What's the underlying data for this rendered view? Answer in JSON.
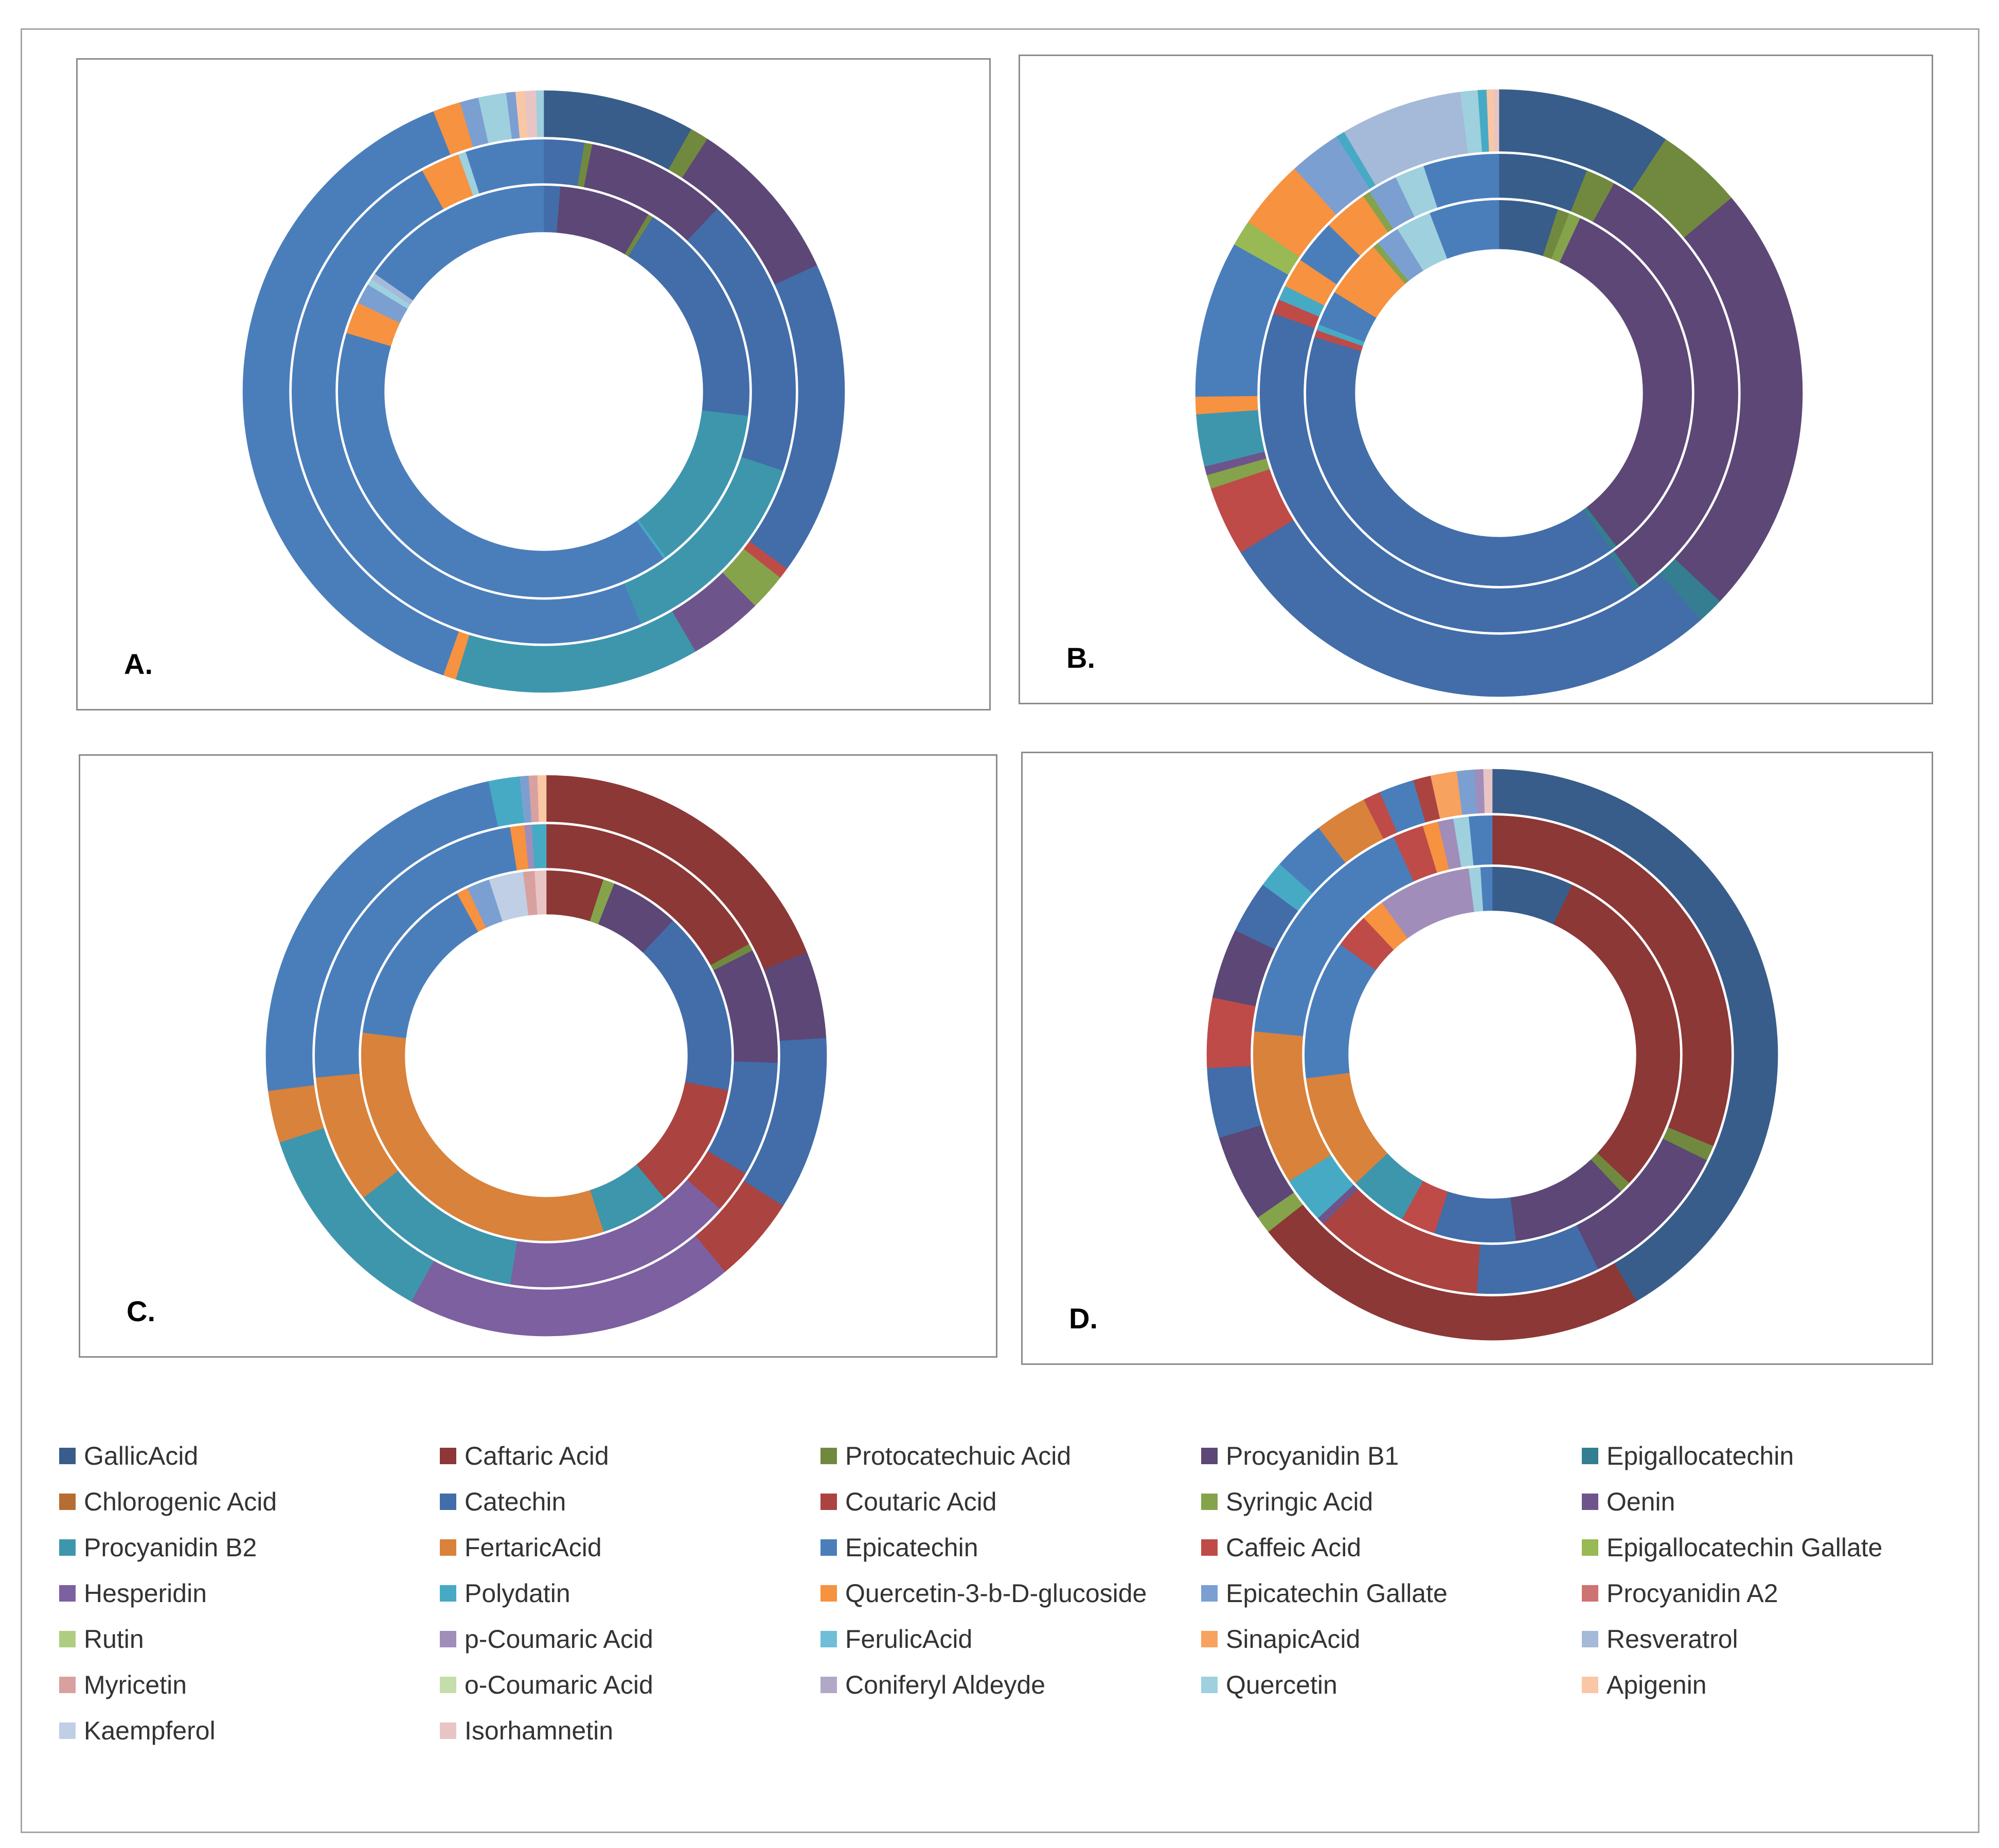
{
  "chart_data": {
    "type": "nested-donut",
    "legend": [
      {
        "name": "GallicAcid",
        "color": "#385d8a"
      },
      {
        "name": "Caftaric Acid",
        "color": "#8c3836"
      },
      {
        "name": "Protocatechuic Acid",
        "color": "#71893f"
      },
      {
        "name": "Procyanidin B1",
        "color": "#5c4776"
      },
      {
        "name": "Epigallocatechin",
        "color": "#357d91"
      },
      {
        "name": "Chlorogenic Acid",
        "color": "#b66d31"
      },
      {
        "name": "Catechin",
        "color": "#426da9"
      },
      {
        "name": "Coutaric Acid",
        "color": "#ab4340"
      },
      {
        "name": "Syringic Acid",
        "color": "#85a34b"
      },
      {
        "name": "Oenin",
        "color": "#6d558c"
      },
      {
        "name": "Procyanidin B2",
        "color": "#3e96ad"
      },
      {
        "name": "FertaricAcid",
        "color": "#d9823b"
      },
      {
        "name": "Epicatechin",
        "color": "#4a7ebb"
      },
      {
        "name": "Caffeic Acid",
        "color": "#be4b48"
      },
      {
        "name": "Epigallocatechin Gallate",
        "color": "#98b954"
      },
      {
        "name": "Hesperidin",
        "color": "#7d60a0"
      },
      {
        "name": "Polydatin",
        "color": "#46aac5"
      },
      {
        "name": "Quercetin-3-b-D-glucoside",
        "color": "#f69240"
      },
      {
        "name": "Epicatechin Gallate",
        "color": "#7c9fd2"
      },
      {
        "name": "Procyanidin A2",
        "color": "#cd7371"
      },
      {
        "name": "Rutin",
        "color": "#afcd81"
      },
      {
        "name": "p-Coumaric Acid",
        "color": "#a08dba"
      },
      {
        "name": "FerulicAcid",
        "color": "#6ebed7"
      },
      {
        "name": "SinapicAcid",
        "color": "#f7a25e"
      },
      {
        "name": "Resveratrol",
        "color": "#a5b9d9"
      },
      {
        "name": "Myricetin",
        "color": "#d9a0a0"
      },
      {
        "name": "o-Coumaric Acid",
        "color": "#c5ddaa"
      },
      {
        "name": "Coniferyl Aldeyde",
        "color": "#b1a8c8"
      },
      {
        "name": "Quercetin",
        "color": "#9ed0de"
      },
      {
        "name": "Apigenin",
        "color": "#f9c7a5"
      },
      {
        "name": "Kaempferol",
        "color": "#c0cfe5"
      },
      {
        "name": "Isorhamnetin",
        "color": "#e8c5c4"
      }
    ],
    "panels": [
      {
        "label": "A.",
        "rings": [
          [
            [
              "Catechin",
              1.3
            ],
            [
              "Procyanidin B1",
              7.2
            ],
            [
              "Protocatechuic Acid",
              0.4
            ],
            [
              "Catechin",
              18
            ],
            [
              "Procyanidin B2",
              13
            ],
            [
              "Polydatin",
              0.2
            ],
            [
              "Epicatechin",
              39.5
            ],
            [
              "Quercetin-3-b-D-glucoside",
              2.5
            ],
            [
              "Epicatechin Gallate",
              1.6
            ],
            [
              "Quercetin",
              0.5
            ],
            [
              "Resveratrol",
              0.5
            ],
            [
              "Epicatechin",
              15.3
            ]
          ],
          [
            [
              "Catechin",
              2.6
            ],
            [
              "Protocatechuic Acid",
              0.5
            ],
            [
              "Procyanidin B1",
              9
            ],
            [
              "Catechin",
              18
            ],
            [
              "Procyanidin B2",
              13.6
            ],
            [
              "Epicatechin",
              48.3
            ],
            [
              "Quercetin-3-b-D-glucoside",
              2.5
            ],
            [
              "Quercetin",
              0.5
            ],
            [
              "Epicatechin",
              5
            ]
          ],
          [
            [
              "GallicAcid",
              8.2
            ],
            [
              "Protocatechuic Acid",
              1
            ],
            [
              "Procyanidin B1",
              9
            ],
            [
              "Catechin",
              17
            ],
            [
              "Caffeic Acid",
              0.6
            ],
            [
              "Syringic Acid",
              2
            ],
            [
              "Oenin",
              4
            ],
            [
              "Procyanidin B2",
              13.2
            ],
            [
              "Quercetin-3-b-D-glucoside",
              0.7
            ],
            [
              "Epicatechin",
              38.8
            ],
            [
              "Quercetin-3-b-D-glucoside",
              1.5
            ],
            [
              "Epicatechin Gallate",
              1
            ],
            [
              "Quercetin",
              1.5
            ],
            [
              "Epicatechin Gallate",
              0.5
            ],
            [
              "Apigenin",
              0.5
            ],
            [
              "Isorhamnetin",
              0.6
            ],
            [
              "Quercetin",
              0.4
            ]
          ]
        ]
      },
      {
        "label": "B.",
        "rings": [
          [
            [
              "GallicAcid",
              5
            ],
            [
              "Protocatechuic Acid",
              1
            ],
            [
              "Syringic Acid",
              1
            ],
            [
              "Procyanidin B1",
              33
            ],
            [
              "Epigallocatechin",
              0.5
            ],
            [
              "Catechin",
              40
            ],
            [
              "Caffeic Acid",
              0.6
            ],
            [
              "Polydatin",
              0.5
            ],
            [
              "Epicatechin",
              3
            ],
            [
              "Quercetin-3-b-D-glucoside",
              5
            ],
            [
              "Syringic Acid",
              0.5
            ],
            [
              "Epicatechin Gallate",
              2
            ],
            [
              "Quercetin",
              3
            ],
            [
              "Epicatechin",
              5.9
            ]
          ],
          [
            [
              "GallicAcid",
              6
            ],
            [
              "Protocatechuic Acid",
              2
            ],
            [
              "Procyanidin B1",
              32
            ],
            [
              "Epigallocatechin",
              0.4
            ],
            [
              "Catechin",
              40
            ],
            [
              "Caffeic Acid",
              1
            ],
            [
              "Polydatin",
              1
            ],
            [
              "Quercetin-3-b-D-glucoside",
              2
            ],
            [
              "Epicatechin",
              3
            ],
            [
              "Quercetin-3-b-D-glucoside",
              3
            ],
            [
              "Syringic Acid",
              0.5
            ],
            [
              "Epicatechin Gallate",
              2
            ],
            [
              "Quercetin",
              2
            ],
            [
              "Epicatechin",
              5.1
            ]
          ],
          [
            [
              "GallicAcid",
              10
            ],
            [
              "Protocatechuic Acid",
              5
            ],
            [
              "Procyanidin B1",
              25
            ],
            [
              "Epigallocatechin",
              1.5
            ],
            [
              "Catechin",
              30
            ],
            [
              "Caffeic Acid",
              4
            ],
            [
              "Syringic Acid",
              0.8
            ],
            [
              "Oenin",
              0.5
            ],
            [
              "Procyanidin B2",
              3
            ],
            [
              "Quercetin-3-b-D-glucoside",
              1
            ],
            [
              "Epicatechin",
              9
            ],
            [
              "Epigallocatechin Gallate",
              1.5
            ],
            [
              "Quercetin-3-b-D-glucoside",
              4
            ],
            [
              "Epicatechin Gallate",
              3
            ],
            [
              "Polydatin",
              0.5
            ],
            [
              "Resveratrol",
              7
            ],
            [
              "Quercetin",
              1
            ],
            [
              "Polydatin",
              0.5
            ],
            [
              "Apigenin",
              0.4
            ],
            [
              "Isorhamnetin",
              0.3
            ]
          ]
        ]
      },
      {
        "label": "C.",
        "rings": [
          [
            [
              "Caftaric Acid",
              5
            ],
            [
              "Syringic Acid",
              1
            ],
            [
              "Procyanidin B1",
              6
            ],
            [
              "Catechin",
              16
            ],
            [
              "Coutaric Acid",
              11
            ],
            [
              "Procyanidin B2",
              6
            ],
            [
              "FertaricAcid",
              32
            ],
            [
              "Epicatechin",
              15
            ],
            [
              "Quercetin-3-b-D-glucoside",
              1
            ],
            [
              "Epicatechin Gallate",
              2
            ],
            [
              "Kaempferol",
              3
            ],
            [
              "Myricetin",
              1
            ],
            [
              "Isorhamnetin",
              1
            ]
          ],
          [
            [
              "Caftaric Acid",
              17
            ],
            [
              "Protocatechuic Acid",
              0.5
            ],
            [
              "Procyanidin B1",
              8
            ],
            [
              "Catechin",
              8
            ],
            [
              "Coutaric Acid",
              3
            ],
            [
              "Hesperidin",
              16
            ],
            [
              "Procyanidin B2",
              12
            ],
            [
              "FertaricAcid",
              9
            ],
            [
              "Epicatechin",
              24
            ],
            [
              "Quercetin-3-b-D-glucoside",
              1
            ],
            [
              "p-Coumaric Acid",
              0.5
            ],
            [
              "Polydatin",
              1
            ]
          ],
          [
            [
              "Caftaric Acid",
              19
            ],
            [
              "Procyanidin B1",
              5
            ],
            [
              "Catechin",
              10
            ],
            [
              "Coutaric Acid",
              5
            ],
            [
              "Hesperidin",
              19
            ],
            [
              "Procyanidin B2",
              12
            ],
            [
              "FertaricAcid",
              3
            ],
            [
              "Epicatechin",
              23.7
            ],
            [
              "Polydatin",
              1.8
            ],
            [
              "Epicatechin Gallate",
              0.5
            ],
            [
              "Myricetin",
              0.5
            ],
            [
              "Apigenin",
              0.5
            ]
          ]
        ]
      },
      {
        "label": "D.",
        "rings": [
          [
            [
              "GallicAcid",
              7
            ],
            [
              "Caftaric Acid",
              30
            ],
            [
              "Protocatechuic Acid",
              1
            ],
            [
              "Procyanidin B1",
              10
            ],
            [
              "Catechin",
              7
            ],
            [
              "Caffeic Acid",
              3
            ],
            [
              "Procyanidin B2",
              5
            ],
            [
              "FertaricAcid",
              10
            ],
            [
              "Epicatechin",
              12
            ],
            [
              "Caffeic Acid",
              3
            ],
            [
              "Quercetin-3-b-D-glucoside",
              2
            ],
            [
              "p-Coumaric Acid",
              8
            ],
            [
              "Quercetin",
              1
            ],
            [
              "Epicatechin",
              1
            ]
          ],
          [
            [
              "Caftaric Acid",
              30
            ],
            [
              "Protocatechuic Acid",
              1
            ],
            [
              "Procyanidin B1",
              10
            ],
            [
              "Catechin",
              8
            ],
            [
              "Coutaric Acid",
              11
            ],
            [
              "Oenin",
              0.5
            ],
            [
              "Polydatin",
              3
            ],
            [
              "FertaricAcid",
              10
            ],
            [
              "Epicatechin",
              16
            ],
            [
              "Caffeic Acid",
              2
            ],
            [
              "Quercetin-3-b-D-glucoside",
              1
            ],
            [
              "p-Coumaric Acid",
              1
            ],
            [
              "Quercetin",
              1
            ],
            [
              "Epicatechin",
              1.5
            ]
          ],
          [
            [
              "GallicAcid",
              42
            ],
            [
              "Caftaric Acid",
              23
            ],
            [
              "Syringic Acid",
              1
            ],
            [
              "Procyanidin B1",
              5
            ],
            [
              "Catechin",
              4
            ],
            [
              "Caffeic Acid",
              4
            ],
            [
              "Procyanidin B1",
              4
            ],
            [
              "Catechin",
              3
            ],
            [
              "Polydatin",
              1.5
            ],
            [
              "Epicatechin",
              3
            ],
            [
              "FertaricAcid",
              3
            ],
            [
              "Caffeic Acid",
              1
            ],
            [
              "Epicatechin",
              2
            ],
            [
              "Coutaric Acid",
              1
            ],
            [
              "SinapicAcid",
              1.5
            ],
            [
              "Epicatechin Gallate",
              1
            ],
            [
              "p-Coumaric Acid",
              0.5
            ],
            [
              "Isorhamnetin",
              0.5
            ]
          ]
        ]
      }
    ]
  }
}
